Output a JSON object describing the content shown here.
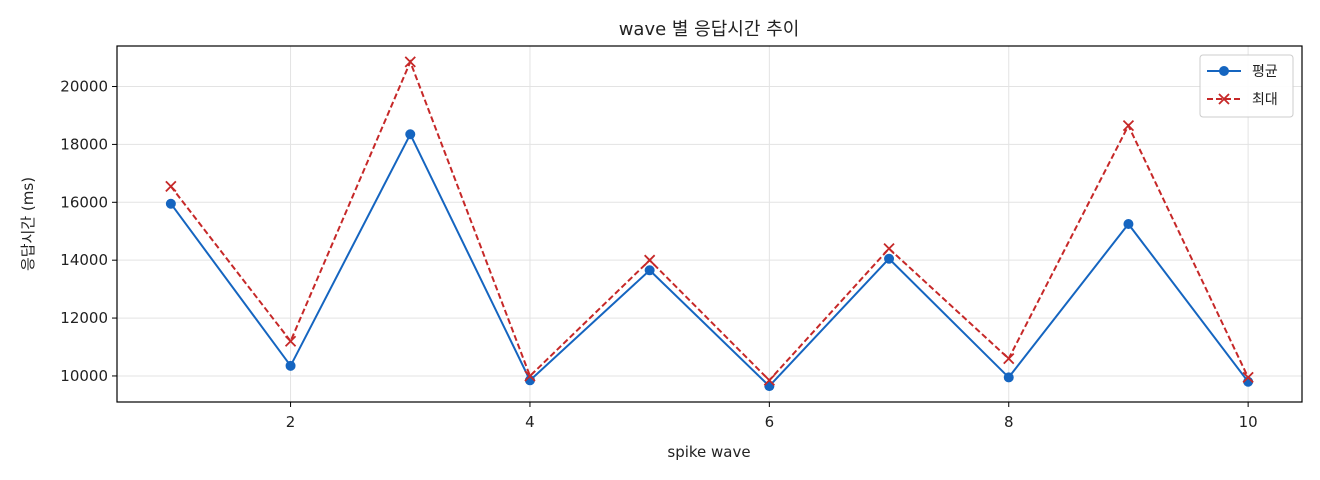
{
  "chart_data": {
    "type": "line",
    "title": "wave 별 응답시간 추이",
    "xlabel": "spike wave",
    "ylabel": "응답시간 (ms)",
    "x": [
      1,
      2,
      3,
      4,
      5,
      6,
      7,
      8,
      9,
      10
    ],
    "xlim": [
      0.55,
      10.45
    ],
    "ylim": [
      9100,
      21400
    ],
    "xticks": [
      2,
      4,
      6,
      8,
      10
    ],
    "yticks": [
      10000,
      12000,
      14000,
      16000,
      18000,
      20000
    ],
    "grid": true,
    "legend_position": "top-right",
    "series": [
      {
        "name": "평균",
        "values": [
          15950,
          10350,
          18350,
          9850,
          13650,
          9650,
          14050,
          9950,
          15250,
          9800
        ],
        "color": "#1565c0",
        "line_style": "solid",
        "marker": "circle"
      },
      {
        "name": "최대",
        "values": [
          16550,
          11200,
          20850,
          10000,
          14000,
          9850,
          14400,
          10600,
          18650,
          9950
        ],
        "color": "#c62828",
        "line_style": "dashed",
        "marker": "x"
      }
    ]
  }
}
